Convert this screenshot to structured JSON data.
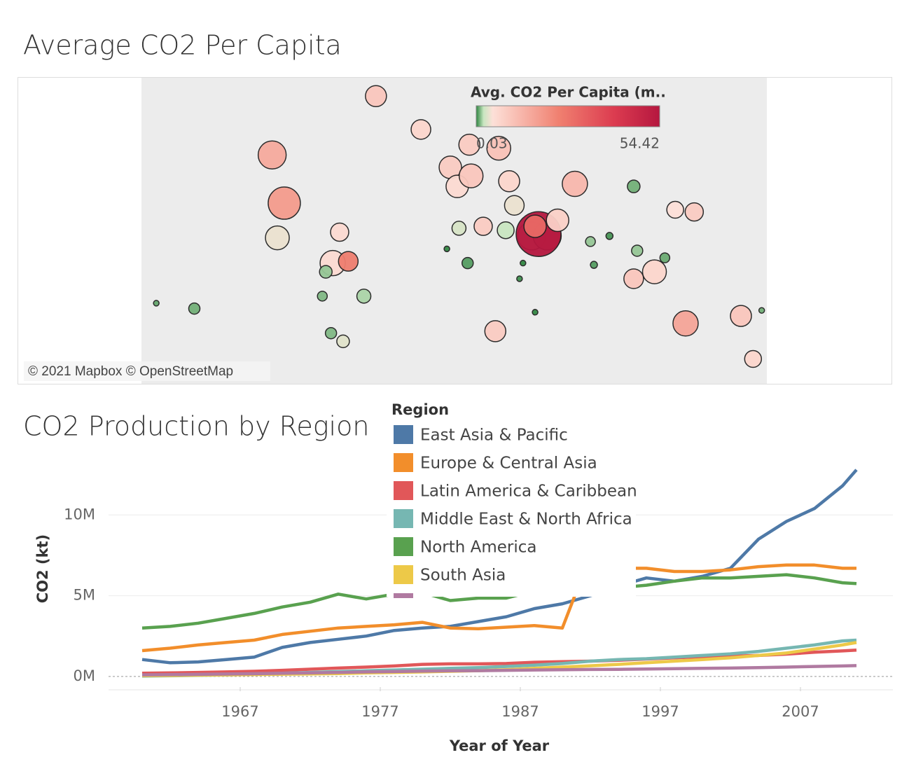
{
  "chart_data": [
    {
      "type": "map",
      "title": "Average CO2 Per Capita",
      "legend_title": "Avg. CO2 Per Capita (m..",
      "clim": [
        0.03,
        54.42
      ],
      "attribution": "© 2021 Mapbox © OpenStreetMap",
      "points": [
        {
          "lon": -45,
          "lat": 72,
          "value": 10,
          "size": 15
        },
        {
          "lon": -105,
          "lat": 58,
          "value": 16,
          "size": 20
        },
        {
          "lon": -98,
          "lat": 40,
          "value": 19,
          "size": 23
        },
        {
          "lon": -102,
          "lat": 23,
          "value": 4,
          "size": 17
        },
        {
          "lon": -70,
          "lat": 9,
          "value": 6,
          "size": 18
        },
        {
          "lon": -74,
          "lat": 4,
          "value": 1.5,
          "size": 9
        },
        {
          "lon": -52,
          "lat": -10,
          "value": 1.8,
          "size": 10
        },
        {
          "lon": -64,
          "lat": -34,
          "value": 3.5,
          "size": 9
        },
        {
          "lon": -71,
          "lat": -30,
          "value": 1.2,
          "size": 8
        },
        {
          "lon": -76,
          "lat": -10,
          "value": 1.2,
          "size": 7
        },
        {
          "lon": -66,
          "lat": 26,
          "value": 6,
          "size": 13
        },
        {
          "lon": -61,
          "lat": 10,
          "value": 25,
          "size": 14
        },
        {
          "lon": -19,
          "lat": 65,
          "value": 7,
          "size": 14
        },
        {
          "lon": 9,
          "lat": 61,
          "value": 9,
          "size": 15
        },
        {
          "lon": -2,
          "lat": 54,
          "value": 9,
          "size": 16
        },
        {
          "lon": 2,
          "lat": 47,
          "value": 6,
          "size": 16
        },
        {
          "lon": 10,
          "lat": 51,
          "value": 10,
          "size": 17
        },
        {
          "lon": 26,
          "lat": 60,
          "value": 11,
          "size": 17
        },
        {
          "lon": 32,
          "lat": 49,
          "value": 7,
          "size": 15
        },
        {
          "lon": 70,
          "lat": 48,
          "value": 13,
          "size": 18
        },
        {
          "lon": 45,
          "lat": 24,
          "value": 17,
          "size": 20
        },
        {
          "lon": 54,
          "lat": 24,
          "value": 30,
          "size": 20
        },
        {
          "lon": 49,
          "lat": 25,
          "value": 54.42,
          "size": 32
        },
        {
          "lon": 47,
          "lat": 29,
          "value": 30,
          "size": 16
        },
        {
          "lon": 60,
          "lat": 32,
          "value": 8,
          "size": 16
        },
        {
          "lon": 35,
          "lat": 39,
          "value": 4,
          "size": 14
        },
        {
          "lon": 30,
          "lat": 27,
          "value": 2.3,
          "size": 12
        },
        {
          "lon": 17,
          "lat": 29,
          "value": 9,
          "size": 13
        },
        {
          "lon": 3,
          "lat": 28,
          "value": 3,
          "size": 10
        },
        {
          "lon": 8,
          "lat": 9,
          "value": 0.6,
          "size": 8
        },
        {
          "lon": 24,
          "lat": -29,
          "value": 9,
          "size": 15
        },
        {
          "lon": 79,
          "lat": 21,
          "value": 1.5,
          "size": 7
        },
        {
          "lon": 128,
          "lat": 37,
          "value": 5,
          "size": 12
        },
        {
          "lon": 104,
          "lat": 47,
          "value": 1,
          "size": 9
        },
        {
          "lon": 139,
          "lat": 36,
          "value": 9,
          "size": 13
        },
        {
          "lon": 116,
          "lat": 4,
          "value": 7,
          "size": 17
        },
        {
          "lon": 104,
          "lat": 0,
          "value": 10,
          "size": 14
        },
        {
          "lon": 134,
          "lat": -25,
          "value": 17,
          "size": 18
        },
        {
          "lon": 166,
          "lat": -21,
          "value": 10,
          "size": 15
        },
        {
          "lon": 173,
          "lat": -42,
          "value": 7,
          "size": 12
        },
        {
          "lon": 38,
          "lat": 0,
          "value": 0.3,
          "size": 4
        },
        {
          "lon": 47,
          "lat": -19,
          "value": 0.1,
          "size": 4
        },
        {
          "lon": 178,
          "lat": -18,
          "value": 1,
          "size": 4
        },
        {
          "lon": -172,
          "lat": -14,
          "value": 0.8,
          "size": 4
        },
        {
          "lon": -150,
          "lat": -17,
          "value": 1,
          "size": 8
        },
        {
          "lon": 90,
          "lat": 24,
          "value": 0.4,
          "size": 5
        },
        {
          "lon": 106,
          "lat": 16,
          "value": 1.5,
          "size": 8
        },
        {
          "lon": 122,
          "lat": 12,
          "value": 0.9,
          "size": 7
        },
        {
          "lon": 81,
          "lat": 8,
          "value": 0.6,
          "size": 5
        },
        {
          "lon": -4,
          "lat": 17,
          "value": 0.1,
          "size": 4
        },
        {
          "lon": 40,
          "lat": 9,
          "value": 0.1,
          "size": 4
        }
      ]
    },
    {
      "type": "line",
      "title": "CO2 Production by Region",
      "legend_title": "Region",
      "x_label": "Year of Year",
      "y_label": "CO2 (kt)",
      "x": [
        1960,
        1962,
        1964,
        1966,
        1968,
        1970,
        1972,
        1974,
        1976,
        1978,
        1980,
        1982,
        1984,
        1986,
        1988,
        1990,
        1992,
        1994,
        1996,
        1998,
        2000,
        2002,
        2004,
        2006,
        2008,
        2010,
        2011
      ],
      "xlim": [
        1957.6,
        2013.6
      ],
      "xticks": [
        1967,
        1977,
        1987,
        1997,
        2007
      ],
      "ylim": [
        -830000,
        13700000
      ],
      "yticks": [
        {
          "value": 0,
          "label": "0M"
        },
        {
          "value": 5000000,
          "label": "5M"
        },
        {
          "value": 10000000,
          "label": "10M"
        }
      ],
      "grid": true,
      "series": [
        {
          "name": "East Asia & Pacific",
          "color": "#4e79a7",
          "values": [
            1050000.0,
            850000.0,
            900000.0,
            1050000.0,
            1200000.0,
            1800000.0,
            2100000.0,
            2300000.0,
            2500000.0,
            2850000.0,
            3000000.0,
            3100000.0,
            3400000.0,
            3700000.0,
            4200000.0,
            4500000.0,
            5000000.0,
            5600000.0,
            6100000.0,
            5900000.0,
            6200000.0,
            6700000.0,
            8500000.0,
            9600000.0,
            10400000.0,
            11800000.0,
            12800000.0
          ]
        },
        {
          "name": "Europe & Central Asia",
          "color": "#f28e2b",
          "values": [
            1600000.0,
            1750000.0,
            1950000.0,
            2100000.0,
            2250000.0,
            2600000.0,
            2800000.0,
            3000000.0,
            3100000.0,
            3200000.0,
            3350000.0,
            3000000.0,
            2950000.0,
            3050000.0,
            3150000.0,
            3000000.0,
            7500000.0,
            6700000.0,
            6700000.0,
            6500000.0,
            6500000.0,
            6600000.0,
            6800000.0,
            6900000.0,
            6900000.0,
            6700000.0,
            6700000.0
          ]
        },
        {
          "name": "Latin America & Caribbean",
          "color": "#e15759",
          "values": [
            200000.0,
            220000.0,
            250000.0,
            280000.0,
            320000.0,
            380000.0,
            450000.0,
            520000.0,
            580000.0,
            650000.0,
            750000.0,
            780000.0,
            780000.0,
            800000.0,
            880000.0,
            920000.0,
            950000.0,
            1000000.0,
            1080000.0,
            1150000.0,
            1220000.0,
            1250000.0,
            1300000.0,
            1380000.0,
            1500000.0,
            1580000.0,
            1630000.0
          ]
        },
        {
          "name": "Middle East & North Africa",
          "color": "#76b7b2",
          "values": [
            20000.0,
            40000.0,
            70000.0,
            100000.0,
            140000.0,
            200000.0,
            250000.0,
            300000.0,
            350000.0,
            400000.0,
            450000.0,
            500000.0,
            550000.0,
            620000.0,
            700000.0,
            800000.0,
            950000.0,
            1050000.0,
            1100000.0,
            1200000.0,
            1300000.0,
            1400000.0,
            1550000.0,
            1750000.0,
            1950000.0,
            2200000.0,
            2250000.0
          ]
        },
        {
          "name": "North America",
          "color": "#59a14f",
          "values": [
            3000000.0,
            3100000.0,
            3300000.0,
            3600000.0,
            3900000.0,
            4300000.0,
            4600000.0,
            5100000.0,
            4800000.0,
            5100000.0,
            5200000.0,
            4700000.0,
            4850000.0,
            4850000.0,
            5300000.0,
            5200000.0,
            5200000.0,
            5500000.0,
            5650000.0,
            5900000.0,
            6100000.0,
            6100000.0,
            6200000.0,
            6300000.0,
            6100000.0,
            5800000.0,
            5750000.0
          ]
        },
        {
          "name": "South Asia",
          "color": "#edc948",
          "values": [
            50000.0,
            60000.0,
            80000.0,
            100000.0,
            120000.0,
            140000.0,
            160000.0,
            180000.0,
            220000.0,
            250000.0,
            280000.0,
            320000.0,
            360000.0,
            420000.0,
            500000.0,
            580000.0,
            660000.0,
            750000.0,
            850000.0,
            950000.0,
            1050000.0,
            1150000.0,
            1300000.0,
            1450000.0,
            1700000.0,
            1950000.0,
            2100000.0
          ]
        },
        {
          "color": "#b07aa1",
          "values": [
            100000.0,
            110000.0,
            130000.0,
            150000.0,
            170000.0,
            200000.0,
            220000.0,
            250000.0,
            280000.0,
            300000.0,
            330000.0,
            350000.0,
            360000.0,
            380000.0,
            400000.0,
            420000.0,
            430000.0,
            440000.0,
            460000.0,
            480000.0,
            500000.0,
            520000.0,
            550000.0,
            580000.0,
            620000.0,
            650000.0,
            670000.0
          ]
        }
      ]
    }
  ]
}
